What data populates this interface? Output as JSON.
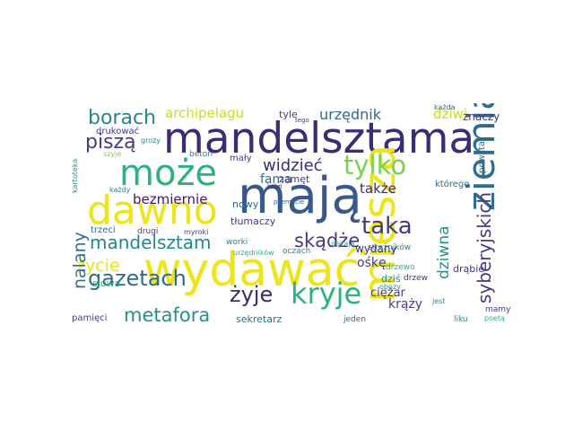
{
  "palette": {
    "navy": "#3b2c73",
    "darkpurple": "#45176a",
    "indigo": "#443a83",
    "blue": "#38598c",
    "steel": "#2f6b8e",
    "teal": "#24878e",
    "sea": "#21918c",
    "green": "#2db27d",
    "lime": "#7ad151",
    "yellow": "#ece51b",
    "pale": "#c8e020"
  },
  "words": [
    {
      "text": "mandelsztama",
      "color": "navy"
    },
    {
      "text": "mają",
      "color": "blue"
    },
    {
      "text": "dawno",
      "color": "yellow"
    },
    {
      "text": "wydawać",
      "color": "yellow"
    },
    {
      "text": "może",
      "color": "green"
    },
    {
      "text": "miesza",
      "color": "yellow"
    },
    {
      "text": "ziemia",
      "color": "steel"
    },
    {
      "text": "kryje",
      "color": "green"
    },
    {
      "text": "syberyjskich",
      "color": "indigo"
    },
    {
      "text": "gazetach",
      "color": "steel"
    },
    {
      "text": "mandelsztam",
      "color": "teal"
    },
    {
      "text": "metafora",
      "color": "sea"
    },
    {
      "text": "borach",
      "color": "teal"
    },
    {
      "text": "piszą",
      "color": "indigo"
    },
    {
      "text": "tylko",
      "color": "lime"
    },
    {
      "text": "taka",
      "color": "indigo"
    },
    {
      "text": "skądże",
      "color": "indigo"
    },
    {
      "text": "życie",
      "color": "yellow"
    },
    {
      "text": "żyje",
      "color": "navy"
    },
    {
      "text": "widzieć",
      "color": "navy"
    },
    {
      "text": "dziwna",
      "color": "sea"
    },
    {
      "text": "nalany",
      "color": "steel"
    },
    {
      "text": "archipelagu",
      "color": "pale"
    },
    {
      "text": "urzędnik",
      "color": "steel"
    },
    {
      "text": "dziwi",
      "color": "pale"
    },
    {
      "text": "bezmiernie",
      "color": "darkpurple"
    },
    {
      "text": "fama",
      "color": "steel"
    },
    {
      "text": "także",
      "color": "navy"
    },
    {
      "text": "wydany",
      "color": "navy"
    },
    {
      "text": "krąży",
      "color": "indigo"
    },
    {
      "text": "ośkę",
      "color": "indigo"
    },
    {
      "text": "ciężar",
      "color": "indigo"
    },
    {
      "text": "znaczy",
      "color": "indigo"
    },
    {
      "text": "powstał",
      "color": "steel"
    },
    {
      "text": "którego",
      "color": "steel"
    },
    {
      "text": "tłumaczy",
      "color": "indigo"
    },
    {
      "text": "tyle",
      "color": "indigo"
    },
    {
      "text": "mały",
      "color": "indigo"
    },
    {
      "text": "zamęt",
      "color": "indigo"
    },
    {
      "text": "nowy",
      "color": "steel"
    },
    {
      "text": "dziś",
      "color": "teal"
    },
    {
      "text": "drzew",
      "color": "indigo"
    },
    {
      "text": "drąbie",
      "color": "indigo"
    },
    {
      "text": "drzewo",
      "color": "green"
    },
    {
      "text": "sekretarz",
      "color": "steel"
    },
    {
      "text": "strażników",
      "color": "teal"
    },
    {
      "text": "drukować",
      "color": "indigo"
    },
    {
      "text": "beton",
      "color": "teal"
    },
    {
      "text": "drugi",
      "color": "indigo"
    },
    {
      "text": "myroki",
      "color": "indigo"
    },
    {
      "text": "trzeci",
      "color": "steel"
    },
    {
      "text": "słowa",
      "color": "green"
    },
    {
      "text": "pamięci",
      "color": "indigo"
    },
    {
      "text": "worki",
      "color": "teal"
    },
    {
      "text": "jeden",
      "color": "steel"
    },
    {
      "text": "liku",
      "color": "teal"
    },
    {
      "text": "mamy",
      "color": "indigo"
    },
    {
      "text": "poetą",
      "color": "green"
    },
    {
      "text": "szyje",
      "color": "lime"
    },
    {
      "text": "grozy",
      "color": "teal"
    },
    {
      "text": "każdy",
      "color": "teal"
    },
    {
      "text": "oczach",
      "color": "teal"
    },
    {
      "text": "urzędników",
      "color": "green"
    },
    {
      "text": "obozy",
      "color": "sea"
    },
    {
      "text": "jest",
      "color": "teal"
    },
    {
      "text": "kartoteka",
      "color": "sea"
    },
    {
      "text": "każda",
      "color": "steel"
    },
    {
      "text": "poemacie",
      "color": "steel"
    },
    {
      "text": "pękają",
      "color": "green"
    },
    {
      "text": "ludzi",
      "color": "navy"
    },
    {
      "text": "tego",
      "color": "indigo"
    }
  ]
}
